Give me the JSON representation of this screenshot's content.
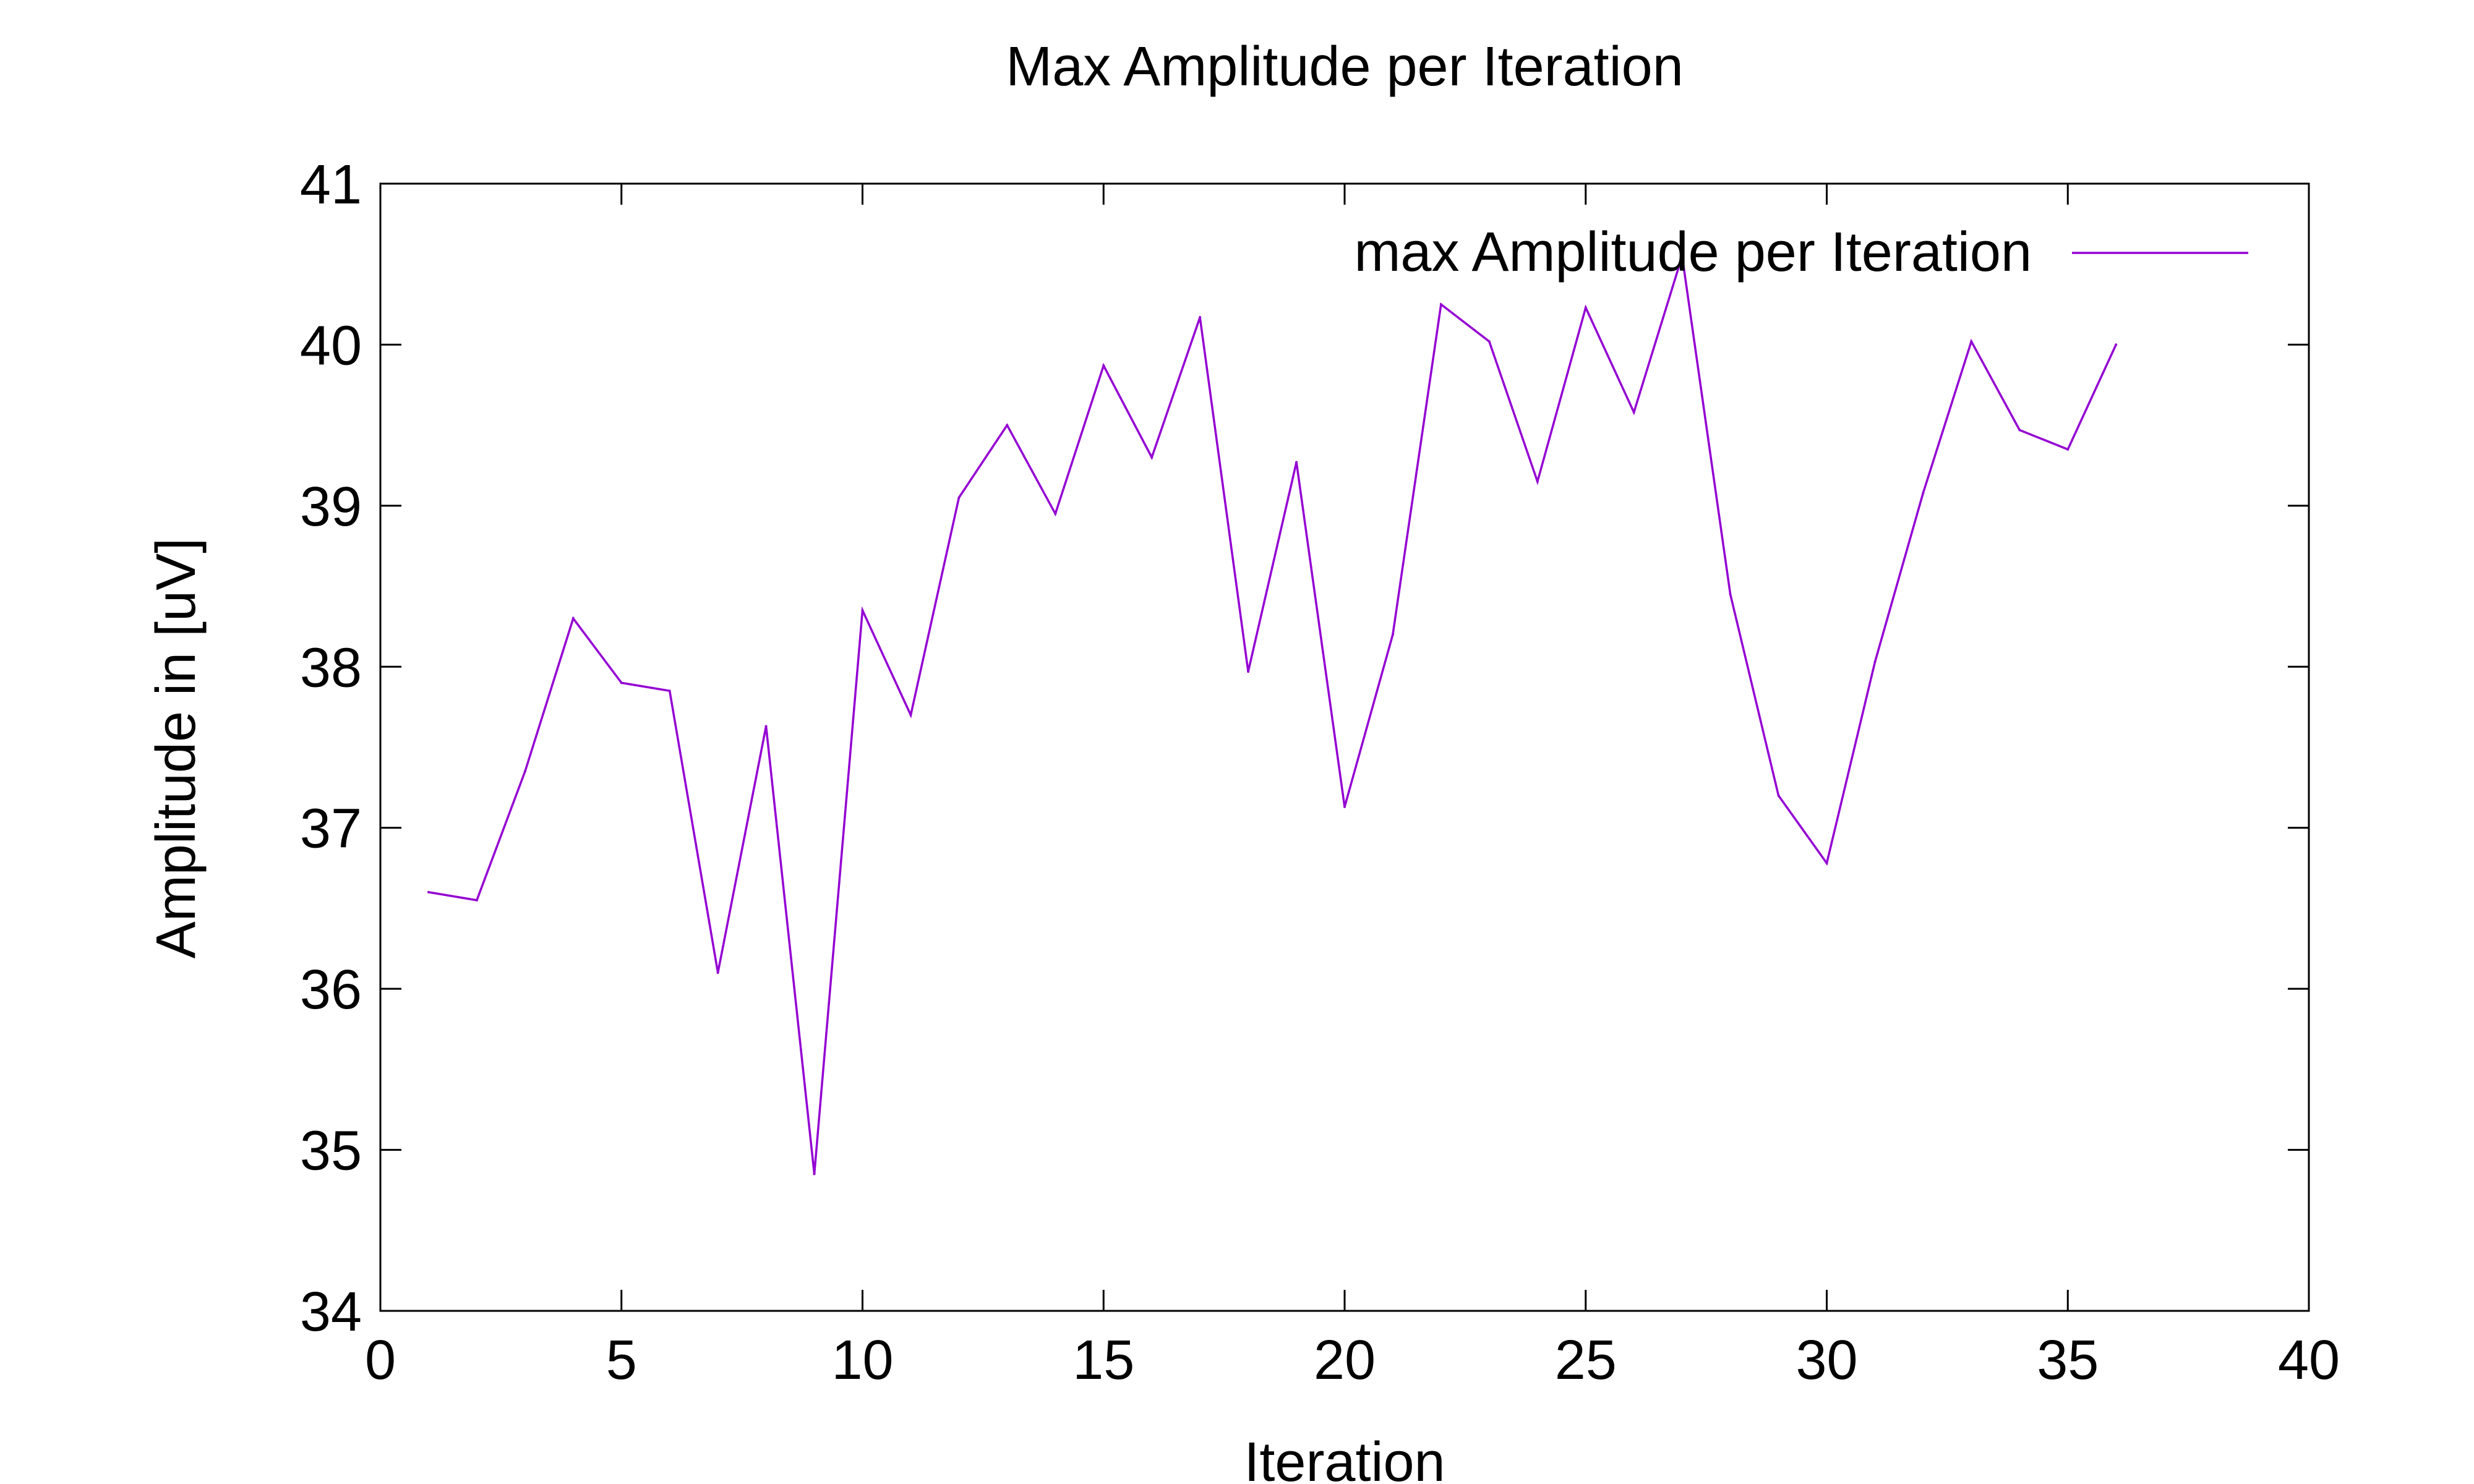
{
  "chart_data": {
    "type": "line",
    "title": "Max Amplitude per Iteration",
    "xlabel": "Iteration",
    "ylabel": "Amplitude in [uV]",
    "xlim": [
      0,
      40
    ],
    "ylim": [
      34,
      41
    ],
    "xticks": [
      "0",
      "5",
      "10",
      "15",
      "20",
      "25",
      "30",
      "35",
      "40"
    ],
    "yticks": [
      "34",
      "35",
      "36",
      "37",
      "38",
      "39",
      "40",
      "41"
    ],
    "grid": false,
    "legend_position": "top-right",
    "series": [
      {
        "name": "max Amplitude per Iteration",
        "color": "#9400d3",
        "x": [
          1,
          2,
          3,
          4,
          5,
          6,
          7,
          8,
          9,
          10,
          11,
          12,
          13,
          14,
          15,
          16,
          17,
          18,
          19,
          20,
          21,
          22,
          23,
          24,
          25,
          26,
          27,
          28,
          29,
          30,
          31,
          32,
          33,
          34,
          35,
          36
        ],
        "y": [
          36.6,
          36.55,
          37.35,
          38.3,
          37.9,
          37.85,
          36.1,
          37.63,
          34.85,
          38.35,
          37.7,
          39.05,
          39.5,
          38.95,
          39.87,
          39.3,
          40.17,
          37.97,
          39.27,
          37.13,
          38.2,
          40.25,
          40.02,
          39.15,
          40.23,
          39.58,
          40.55,
          38.45,
          37.2,
          36.78,
          38.03,
          39.08,
          40.02,
          39.47,
          39.35,
          40.0
        ]
      }
    ]
  }
}
